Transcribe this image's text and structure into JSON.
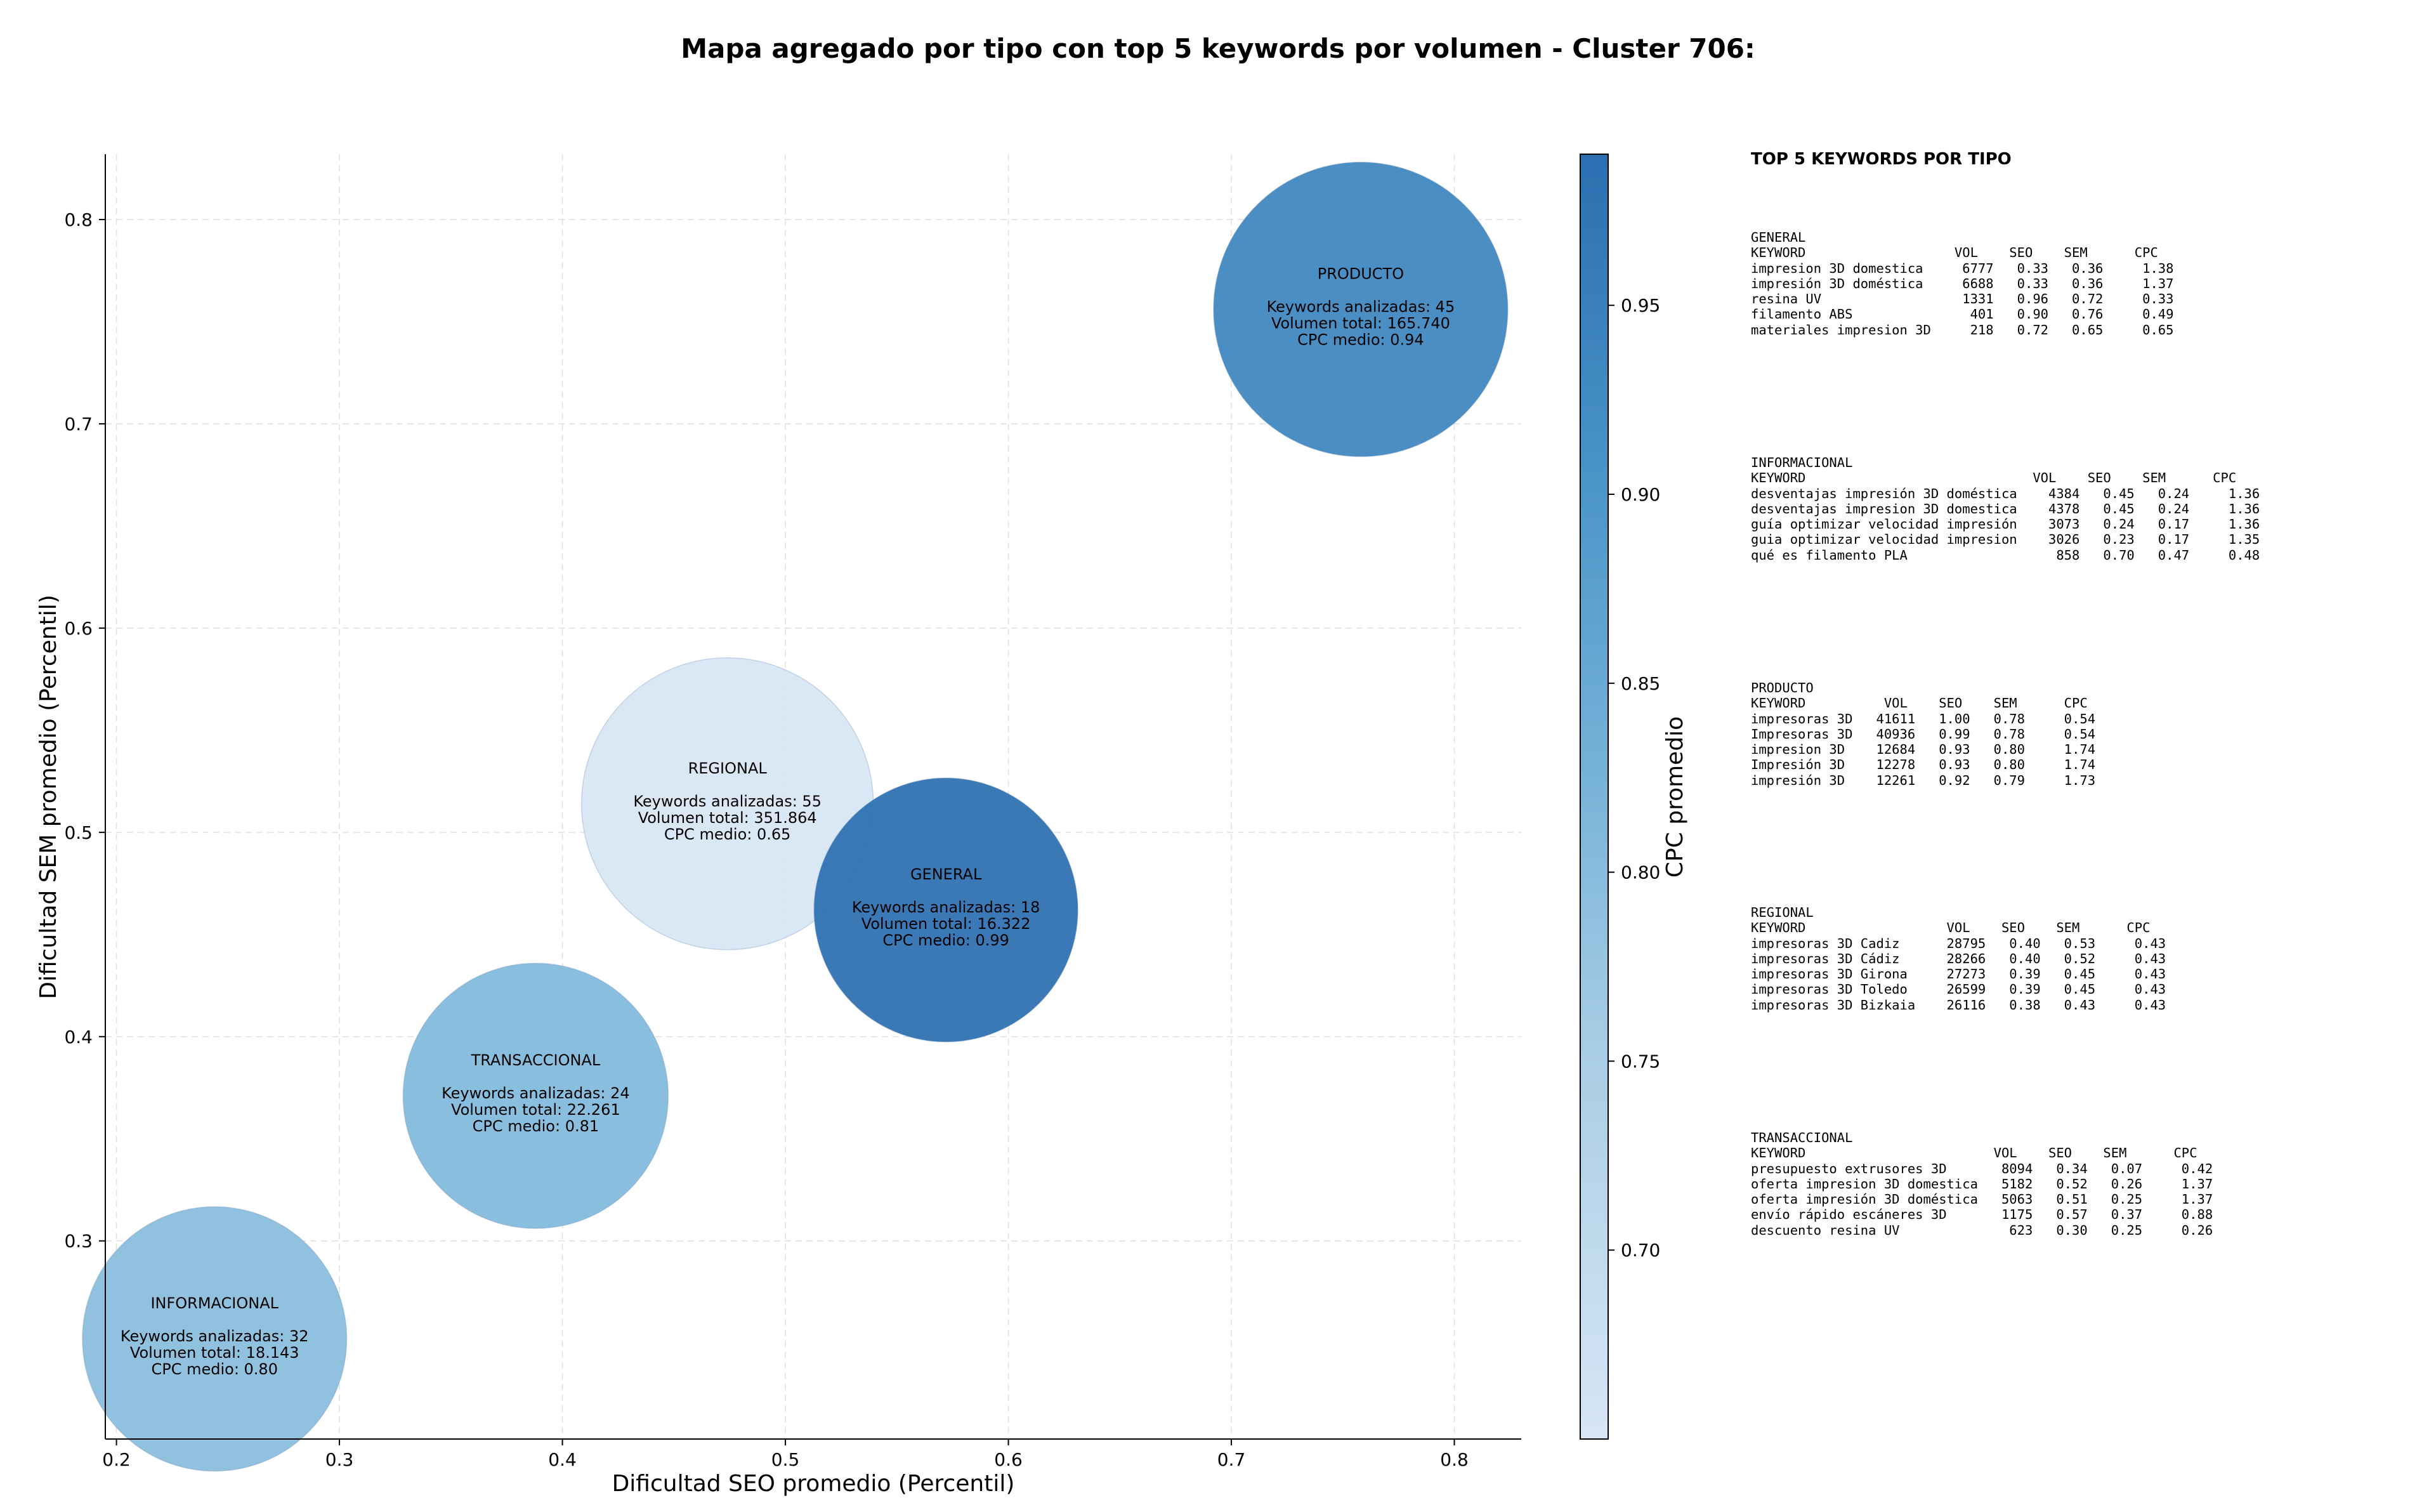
{
  "title": "Mapa agregado por tipo con top 5 keywords por volumen - Cluster 706:",
  "chart_data": {
    "type": "scatter",
    "xlabel": "Dificultad SEO promedio (Percentil)",
    "ylabel": "Dificultad SEM promedio (Percentil)",
    "xlim": [
      0.195,
      0.83
    ],
    "ylim": [
      0.203,
      0.832
    ],
    "xticks": [
      "0.2",
      "0.3",
      "0.4",
      "0.5",
      "0.6",
      "0.7",
      "0.8"
    ],
    "yticks": [
      "0.3",
      "0.4",
      "0.5",
      "0.6",
      "0.7",
      "0.8"
    ],
    "grid": true,
    "colorbar": {
      "label": "CPC promedio",
      "min": 0.65,
      "max": 0.99,
      "ticks": [
        "0.70",
        "0.75",
        "0.80",
        "0.85",
        "0.90",
        "0.95"
      ]
    },
    "bubble_size_by": "Volumen total",
    "stats_label_keywords": "Keywords analizadas: ",
    "stats_label_volume": "Volumen total: ",
    "stats_label_cpc": "CPC medio: ",
    "points": [
      {
        "name": "PRODUCTO",
        "x": 0.758,
        "y": 0.756,
        "keywords": "45",
        "volume": "165.740",
        "cpc": "0.94",
        "volume_num": 165740,
        "cpc_num": 0.94
      },
      {
        "name": "REGIONAL",
        "x": 0.474,
        "y": 0.514,
        "keywords": "55",
        "volume": "351.864",
        "cpc": "0.65",
        "volume_num": 351864,
        "cpc_num": 0.65
      },
      {
        "name": "GENERAL",
        "x": 0.572,
        "y": 0.462,
        "keywords": "18",
        "volume": "16.322",
        "cpc": "0.99",
        "volume_num": 16322,
        "cpc_num": 0.99
      },
      {
        "name": "TRANSACCIONAL",
        "x": 0.388,
        "y": 0.371,
        "keywords": "24",
        "volume": "22.261",
        "cpc": "0.81",
        "volume_num": 22261,
        "cpc_num": 0.81
      },
      {
        "name": "INFORMACIONAL",
        "x": 0.244,
        "y": 0.252,
        "keywords": "32",
        "volume": "18.143",
        "cpc": "0.80",
        "volume_num": 18143,
        "cpc_num": 0.8
      }
    ]
  },
  "tables": {
    "heading": "TOP 5 KEYWORDS POR TIPO",
    "groups": [
      {
        "name": "GENERAL",
        "header": "KEYWORD                   VOL    SEO    SEM      CPC",
        "rows": [
          "impresion 3D domestica     6777   0.33   0.36     1.38",
          "impresión 3D doméstica     6688   0.33   0.36     1.37",
          "resina UV                  1331   0.96   0.72     0.33",
          "filamento ABS               401   0.90   0.76     0.49",
          "materiales impresion 3D     218   0.72   0.65     0.65"
        ]
      },
      {
        "name": "INFORMACIONAL",
        "header": "KEYWORD                             VOL    SEO    SEM      CPC",
        "rows": [
          "desventajas impresión 3D doméstica    4384   0.45   0.24     1.36",
          "desventajas impresion 3D domestica    4378   0.45   0.24     1.36",
          "guía optimizar velocidad impresión    3073   0.24   0.17     1.36",
          "guia optimizar velocidad impresion    3026   0.23   0.17     1.35",
          "qué es filamento PLA                   858   0.70   0.47     0.48"
        ]
      },
      {
        "name": "PRODUCTO",
        "header": "KEYWORD          VOL    SEO    SEM      CPC",
        "rows": [
          "impresoras 3D   41611   1.00   0.78     0.54",
          "Impresoras 3D   40936   0.99   0.78     0.54",
          "impresion 3D    12684   0.93   0.80     1.74",
          "Impresión 3D    12278   0.93   0.80     1.74",
          "impresión 3D    12261   0.92   0.79     1.73"
        ]
      },
      {
        "name": "REGIONAL",
        "header": "KEYWORD                  VOL    SEO    SEM      CPC",
        "rows": [
          "impresoras 3D Cadiz      28795   0.40   0.53     0.43",
          "impresoras 3D Cádiz      28266   0.40   0.52     0.43",
          "impresoras 3D Girona     27273   0.39   0.45     0.43",
          "impresoras 3D Toledo     26599   0.39   0.45     0.43",
          "impresoras 3D Bizkaia    26116   0.38   0.43     0.43"
        ]
      },
      {
        "name": "TRANSACCIONAL",
        "header": "KEYWORD                        VOL    SEO    SEM      CPC",
        "rows": [
          "presupuesto extrusores 3D       8094   0.34   0.07     0.42",
          "oferta impresion 3D domestica   5182   0.52   0.26     1.37",
          "oferta impresión 3D doméstica   5063   0.51   0.25     1.37",
          "envío rápido escáneres 3D       1175   0.57   0.37     0.88",
          "descuento resina UV              623   0.30   0.25     0.26"
        ]
      }
    ]
  }
}
